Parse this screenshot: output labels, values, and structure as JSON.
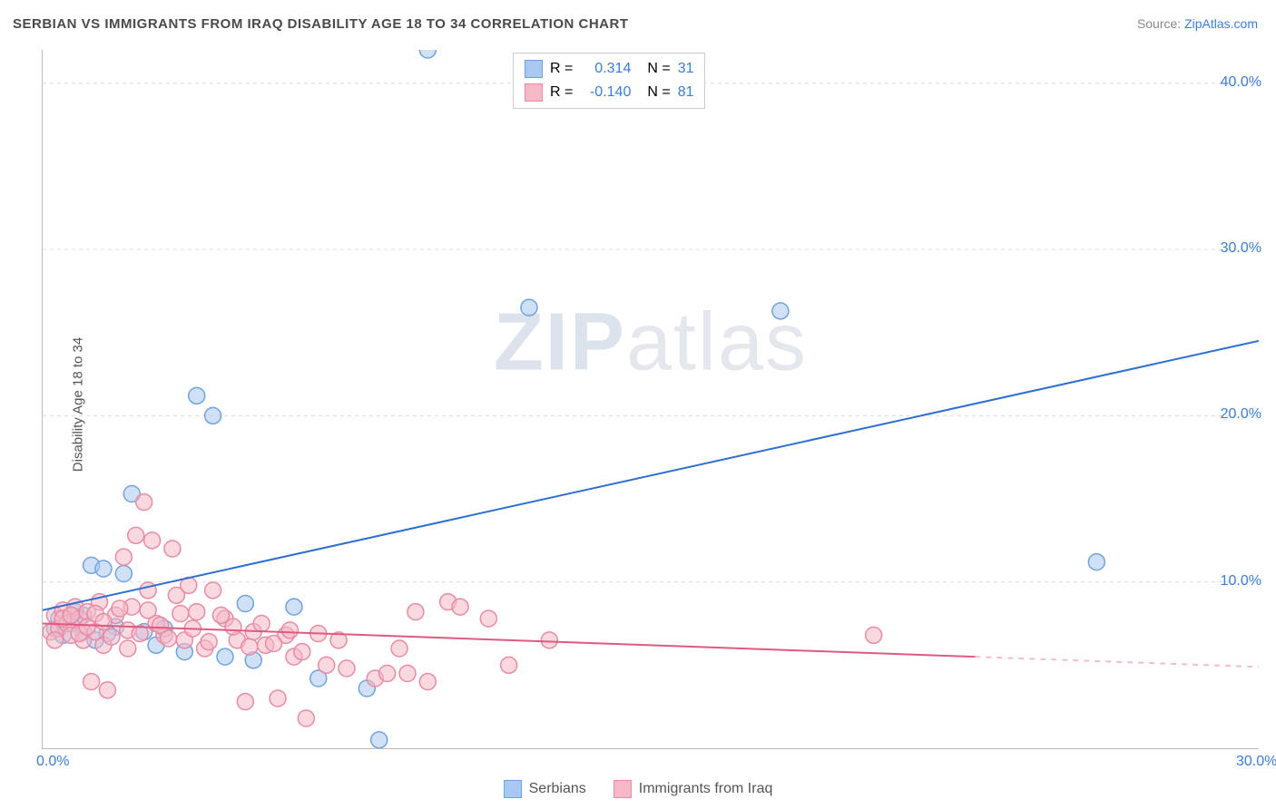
{
  "title": "SERBIAN VS IMMIGRANTS FROM IRAQ DISABILITY AGE 18 TO 34 CORRELATION CHART",
  "source_label": "Source: ",
  "source_link": "ZipAtlas.com",
  "y_axis_label": "Disability Age 18 to 34",
  "watermark_bold": "ZIP",
  "watermark_light": "atlas",
  "chart": {
    "type": "scatter",
    "xlim": [
      0,
      30
    ],
    "ylim": [
      0,
      42
    ],
    "x_ticks": [
      0,
      30
    ],
    "x_tick_labels": [
      "0.0%",
      "30.0%"
    ],
    "y_ticks": [
      10,
      20,
      30,
      40
    ],
    "y_tick_labels": [
      "10.0%",
      "20.0%",
      "30.0%",
      "40.0%"
    ],
    "grid_color": "#dddddd",
    "background_color": "#ffffff",
    "series": [
      {
        "name": "Serbians",
        "color_fill": "#a9c8ef",
        "color_stroke": "#6fa3e0",
        "r_label": "R = ",
        "r_value": "0.314",
        "n_label": "N = ",
        "n_value": "31",
        "trend": {
          "x1": 0,
          "y1": 8.3,
          "x2": 30,
          "y2": 24.5,
          "color": "#2f6fd0",
          "width": 2
        },
        "points": [
          [
            0.3,
            7.2
          ],
          [
            0.5,
            6.8
          ],
          [
            0.7,
            7.5
          ],
          [
            1.0,
            7.0
          ],
          [
            1.2,
            11.0
          ],
          [
            1.5,
            10.8
          ],
          [
            1.8,
            7.3
          ],
          [
            2.0,
            10.5
          ],
          [
            2.2,
            15.3
          ],
          [
            2.5,
            7.0
          ],
          [
            3.0,
            7.2
          ],
          [
            3.5,
            5.8
          ],
          [
            3.8,
            21.2
          ],
          [
            4.2,
            20.0
          ],
          [
            4.5,
            5.5
          ],
          [
            5.0,
            8.7
          ],
          [
            5.2,
            5.3
          ],
          [
            6.2,
            8.5
          ],
          [
            6.8,
            4.2
          ],
          [
            8.0,
            3.6
          ],
          [
            8.3,
            0.5
          ],
          [
            9.5,
            42.0
          ],
          [
            12.0,
            26.5
          ],
          [
            18.2,
            26.3
          ],
          [
            26.0,
            11.2
          ],
          [
            1.0,
            8.0
          ],
          [
            1.3,
            6.5
          ],
          [
            0.8,
            8.2
          ],
          [
            0.4,
            7.8
          ],
          [
            1.6,
            6.9
          ],
          [
            2.8,
            6.2
          ]
        ]
      },
      {
        "name": "Immigrants from Iraq",
        "color_fill": "#f5b8c6",
        "color_stroke": "#e88ba3",
        "r_label": "R = ",
        "r_value": "-0.140",
        "n_label": "N = ",
        "n_value": "81",
        "trend": {
          "x1": 0,
          "y1": 7.5,
          "x2": 23,
          "y2": 5.5,
          "color": "#e05a7d",
          "width": 2,
          "dash_extend_to": 30
        },
        "points": [
          [
            0.2,
            7.0
          ],
          [
            0.3,
            8.0
          ],
          [
            0.4,
            7.2
          ],
          [
            0.5,
            8.3
          ],
          [
            0.6,
            7.5
          ],
          [
            0.7,
            6.8
          ],
          [
            0.8,
            8.5
          ],
          [
            0.9,
            7.8
          ],
          [
            1.0,
            6.5
          ],
          [
            1.1,
            8.2
          ],
          [
            1.2,
            4.0
          ],
          [
            1.3,
            7.0
          ],
          [
            1.4,
            8.8
          ],
          [
            1.5,
            6.2
          ],
          [
            1.6,
            3.5
          ],
          [
            1.8,
            8.0
          ],
          [
            2.0,
            11.5
          ],
          [
            2.1,
            6.0
          ],
          [
            2.2,
            8.5
          ],
          [
            2.3,
            12.8
          ],
          [
            2.5,
            14.8
          ],
          [
            2.6,
            9.5
          ],
          [
            2.7,
            12.5
          ],
          [
            2.8,
            7.5
          ],
          [
            3.0,
            6.8
          ],
          [
            3.2,
            12.0
          ],
          [
            3.3,
            9.2
          ],
          [
            3.5,
            6.5
          ],
          [
            3.6,
            9.8
          ],
          [
            3.8,
            8.2
          ],
          [
            4.0,
            6.0
          ],
          [
            4.2,
            9.5
          ],
          [
            4.5,
            7.8
          ],
          [
            4.8,
            6.5
          ],
          [
            5.0,
            2.8
          ],
          [
            5.2,
            7.0
          ],
          [
            5.5,
            6.2
          ],
          [
            5.8,
            3.0
          ],
          [
            6.0,
            6.8
          ],
          [
            6.2,
            5.5
          ],
          [
            6.5,
            1.8
          ],
          [
            7.0,
            5.0
          ],
          [
            7.3,
            6.5
          ],
          [
            7.5,
            4.8
          ],
          [
            8.2,
            4.2
          ],
          [
            8.5,
            4.5
          ],
          [
            8.8,
            6.0
          ],
          [
            9.0,
            4.5
          ],
          [
            9.2,
            8.2
          ],
          [
            9.5,
            4.0
          ],
          [
            10.0,
            8.8
          ],
          [
            10.3,
            8.5
          ],
          [
            11.0,
            7.8
          ],
          [
            11.5,
            5.0
          ],
          [
            12.5,
            6.5
          ],
          [
            20.5,
            6.8
          ],
          [
            0.3,
            6.5
          ],
          [
            0.5,
            7.8
          ],
          [
            0.7,
            8.0
          ],
          [
            0.9,
            6.9
          ],
          [
            1.1,
            7.3
          ],
          [
            1.3,
            8.1
          ],
          [
            1.5,
            7.6
          ],
          [
            1.7,
            6.7
          ],
          [
            1.9,
            8.4
          ],
          [
            2.1,
            7.1
          ],
          [
            2.4,
            6.9
          ],
          [
            2.6,
            8.3
          ],
          [
            2.9,
            7.4
          ],
          [
            3.1,
            6.6
          ],
          [
            3.4,
            8.1
          ],
          [
            3.7,
            7.2
          ],
          [
            4.1,
            6.4
          ],
          [
            4.4,
            8.0
          ],
          [
            4.7,
            7.3
          ],
          [
            5.1,
            6.1
          ],
          [
            5.4,
            7.5
          ],
          [
            5.7,
            6.3
          ],
          [
            6.1,
            7.1
          ],
          [
            6.4,
            5.8
          ],
          [
            6.8,
            6.9
          ]
        ]
      }
    ]
  },
  "legend_top": {
    "text_color": "#555555",
    "value_color": "#3b7dd8"
  },
  "legend_bottom": {
    "items": [
      "Serbians",
      "Immigrants from Iraq"
    ]
  }
}
